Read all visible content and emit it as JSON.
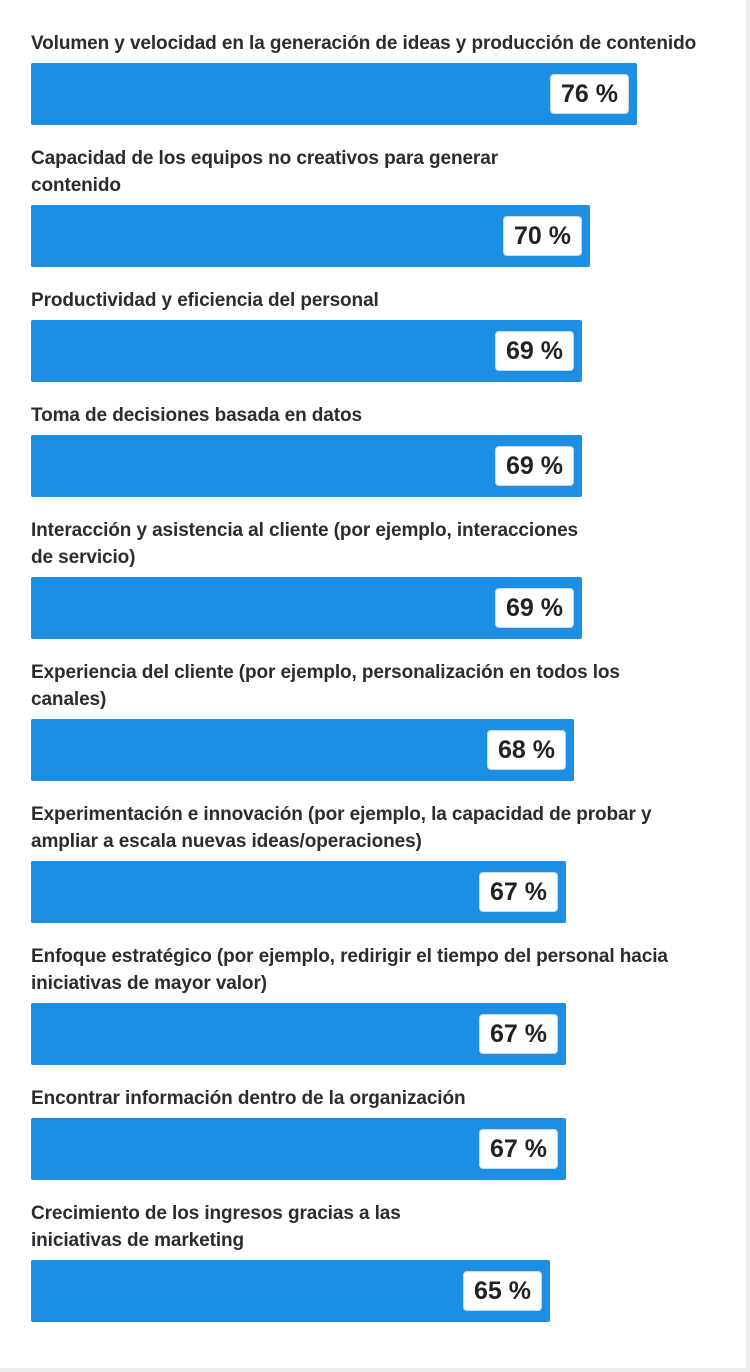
{
  "chart_data": {
    "type": "bar",
    "orientation": "horizontal",
    "unit": "%",
    "xlim": [
      0,
      100
    ],
    "color": "#1d8fe3",
    "categories": [
      "Volumen y velocidad en la generación de ideas y producción de contenido",
      "Capacidad de los equipos no creativos para generar contenido",
      "Productividad y eficiencia del personal",
      "Toma de decisiones basada en datos",
      "Interacción y asistencia al cliente (por ejemplo, interacciones de servicio)",
      "Experiencia del cliente (por ejemplo, personalización en todos los canales)",
      "Experimentación e innovación (por ejemplo, la capacidad de probar y ampliar a escala nuevas ideas/operaciones)",
      "Enfoque estratégico (por ejemplo, redirigir el tiempo del personal hacia iniciativas de mayor valor)",
      "Encontrar información dentro de la organización",
      "Crecimiento de los ingresos gracias a las iniciativas de marketing"
    ],
    "label_lines": [
      [
        "Volumen y velocidad en la generación de ideas y producción de contenido"
      ],
      [
        "Capacidad de los equipos no creativos para generar",
        "contenido"
      ],
      [
        "Productividad y eficiencia del personal"
      ],
      [
        "Toma de decisiones basada en datos"
      ],
      [
        "Interacción y asistencia al cliente (por ejemplo, interacciones",
        "de servicio)"
      ],
      [
        "Experiencia del cliente (por ejemplo, personalización en todos los",
        "canales)"
      ],
      [
        "Experimentación e innovación (por ejemplo, la capacidad de probar y",
        "ampliar a escala nuevas ideas/operaciones)"
      ],
      [
        "Enfoque estratégico (por ejemplo, redirigir el tiempo del personal hacia",
        "iniciativas de mayor valor)"
      ],
      [
        "Encontrar información dentro de la organización"
      ],
      [
        "Crecimiento de los ingresos gracias a las",
        "iniciativas de marketing"
      ]
    ],
    "values": [
      76,
      70,
      69,
      69,
      69,
      68,
      67,
      67,
      67,
      65
    ],
    "value_labels": [
      "76 %",
      "70 %",
      "69 %",
      "69 %",
      "69 %",
      "68 %",
      "67 %",
      "67 %",
      "67 %",
      "65 %"
    ]
  }
}
